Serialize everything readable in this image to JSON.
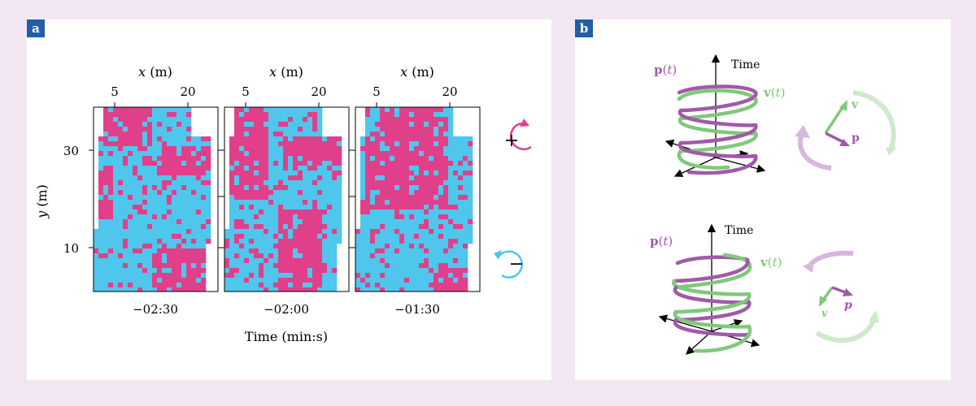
{
  "panel_a": {
    "tag": "a",
    "x_axis_label_var": "x",
    "x_axis_label_unit": " (m)",
    "x_ticks": [
      "5",
      "20"
    ],
    "y_axis_label_var": "y",
    "y_axis_label_unit": " (m)",
    "y_ticks": [
      "30",
      "10"
    ],
    "maps": [
      {
        "time_label": "−02:30"
      },
      {
        "time_label": "−02:00"
      },
      {
        "time_label": "−01:30"
      }
    ],
    "x_title": "Time (min:s)",
    "legend": {
      "plus_symbol": "+",
      "minus_symbol": "−"
    },
    "colors": {
      "magenta": "#e0408a",
      "cyan": "#4fc6ec"
    }
  },
  "panel_b": {
    "tag": "b",
    "top": {
      "time_label": "Time",
      "p_label": "p",
      "v_label": "v",
      "t_arg": "t",
      "vec_v": "v",
      "vec_p": "p"
    },
    "bottom": {
      "time_label": "Time",
      "p_label": "p",
      "v_label": "v",
      "t_arg": "t",
      "vec_v": "v",
      "vec_p": "p"
    },
    "colors": {
      "purple": "#a05aa8",
      "green": "#7fc97a"
    }
  }
}
